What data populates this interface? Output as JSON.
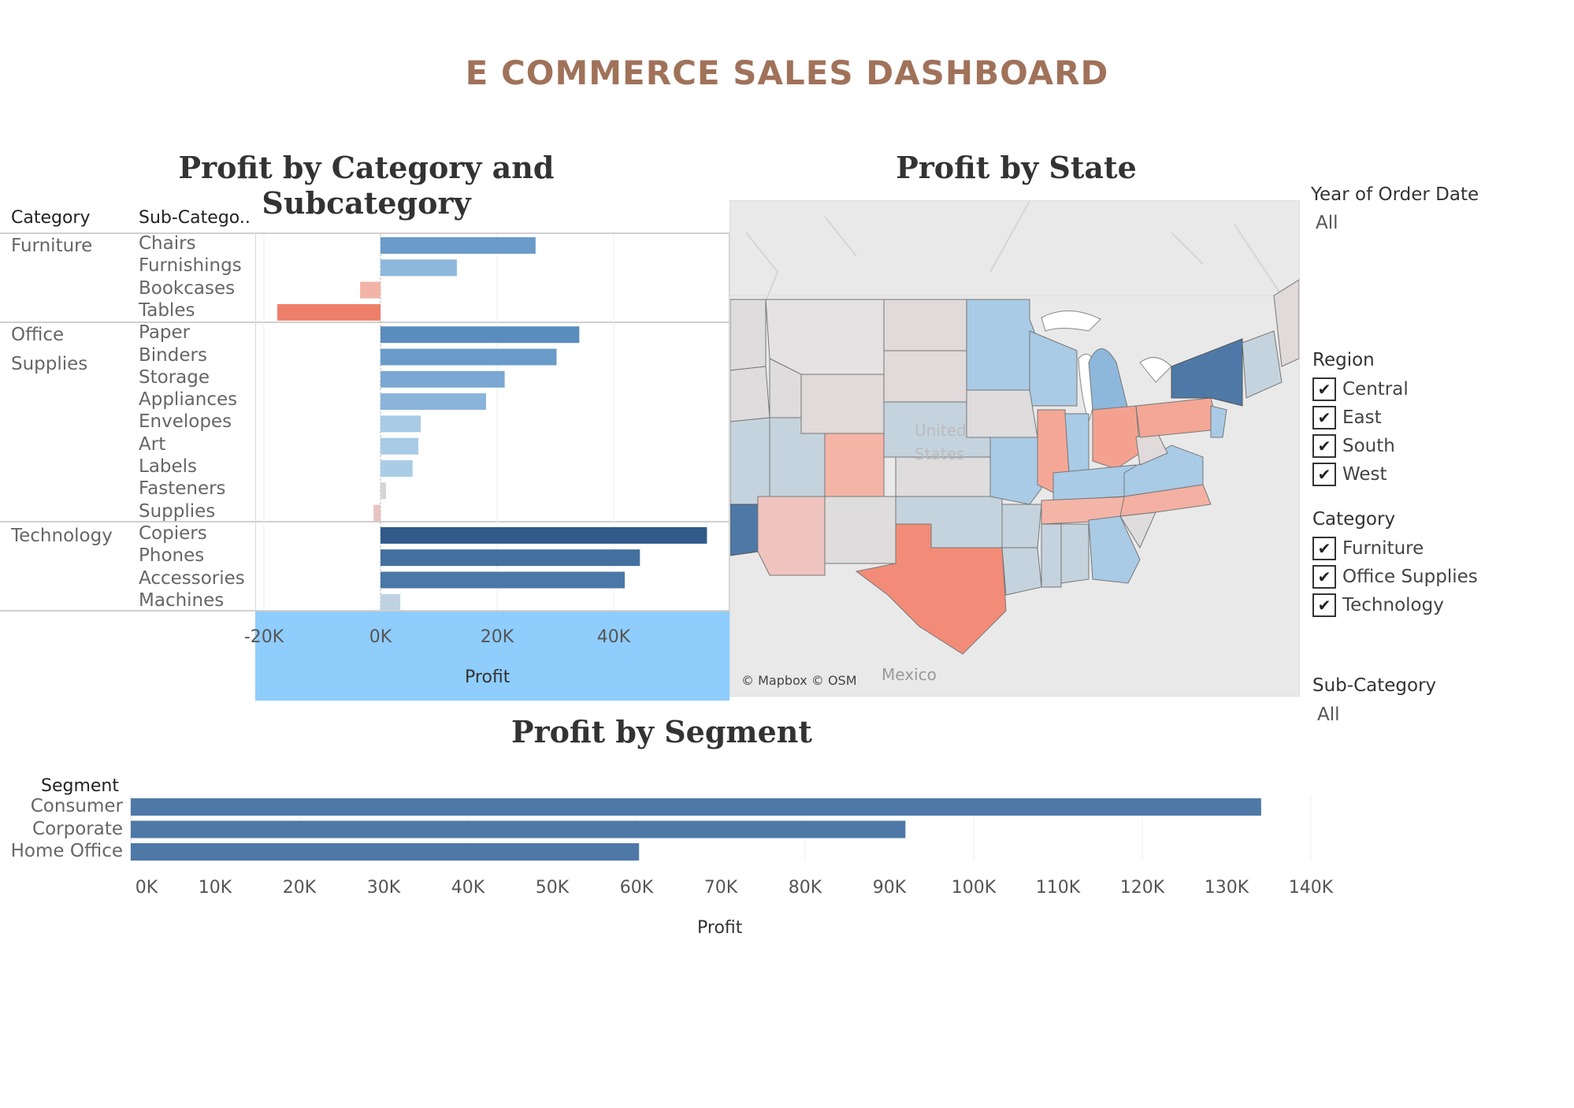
{
  "dashboard": {
    "title": "E COMMERCE SALES DASHBOARD"
  },
  "category_chart": {
    "title": "Profit by Category and Subcategory",
    "col_header_category": "Category",
    "col_header_subcategory": "Sub-Catego..",
    "categories": [
      {
        "name_lines": [
          "Furniture"
        ],
        "subs": [
          "Chairs",
          "Furnishings",
          "Bookcases",
          "Tables"
        ]
      },
      {
        "name_lines": [
          "Office",
          "Supplies"
        ],
        "subs": [
          "Paper",
          "Binders",
          "Storage",
          "Appliances",
          "Envelopes",
          "Art",
          "Labels",
          "Fasteners",
          "Supplies"
        ]
      },
      {
        "name_lines": [
          "Technology"
        ],
        "subs": [
          "Copiers",
          "Phones",
          "Accessories",
          "Machines"
        ]
      }
    ],
    "ticks": [
      "-20K",
      "0K",
      "20K",
      "40K"
    ],
    "axis_title": "Profit"
  },
  "chart_data": [
    {
      "type": "bar",
      "title": "Profit by Category and Subcategory",
      "orientation": "horizontal",
      "categories": [
        "Chairs",
        "Furnishings",
        "Bookcases",
        "Tables",
        "Paper",
        "Binders",
        "Storage",
        "Appliances",
        "Envelopes",
        "Art",
        "Labels",
        "Fasteners",
        "Supplies",
        "Copiers",
        "Phones",
        "Accessories",
        "Machines"
      ],
      "groups": [
        "Furniture",
        "Furniture",
        "Furniture",
        "Furniture",
        "Office Supplies",
        "Office Supplies",
        "Office Supplies",
        "Office Supplies",
        "Office Supplies",
        "Office Supplies",
        "Office Supplies",
        "Office Supplies",
        "Office Supplies",
        "Technology",
        "Technology",
        "Technology",
        "Technology"
      ],
      "values": [
        26600,
        13100,
        -3500,
        -17700,
        34100,
        30200,
        21300,
        18100,
        6900,
        6500,
        5500,
        950,
        -1200,
        56000,
        44500,
        41900,
        3400
      ],
      "colors": [
        "#6a9bc9",
        "#8db8dc",
        "#f2b4a6",
        "#ee7f6b",
        "#5a8cbd",
        "#6a9bc9",
        "#7aa8d2",
        "#8ab4da",
        "#a8cbe6",
        "#a8cbe6",
        "#aacde7",
        "#d8d4d4",
        "#e8c4c0",
        "#2f5a8a",
        "#44709f",
        "#4a77a6",
        "#c0d2e2"
      ],
      "xlabel": "Profit",
      "xlim": [
        -20000,
        58000
      ],
      "xticks": [
        "-20K",
        "0K",
        "20K",
        "40K"
      ]
    },
    {
      "type": "bar",
      "title": "Profit by Segment",
      "orientation": "horizontal",
      "categories": [
        "Consumer",
        "Corporate",
        "Home Office"
      ],
      "values": [
        134100,
        91900,
        60300
      ],
      "colors": [
        "#4e79a7",
        "#4e79a7",
        "#4e79a7"
      ],
      "xlabel": "Profit",
      "xlim": [
        0,
        140000
      ],
      "xticks": [
        "0K",
        "10K",
        "20K",
        "30K",
        "40K",
        "50K",
        "60K",
        "70K",
        "80K",
        "90K",
        "100K",
        "110K",
        "120K",
        "130K",
        "140K"
      ]
    }
  ],
  "state_map": {
    "title": "Profit by State",
    "attribution": "© Mapbox © OSM",
    "label_mexico": "Mexico",
    "label_us_1": "United",
    "label_us_2": "States",
    "colors": {
      "strong_positive": "#4e79a7",
      "positive": "#a9cbe6",
      "neutral": "#dedcdc",
      "negative": "#f4ab9a",
      "strong_negative": "#ee8a74"
    }
  },
  "segment_chart": {
    "title": "Profit by Segment",
    "col_header": "Segment",
    "segments": [
      "Consumer",
      "Corporate",
      "Home Office"
    ],
    "ticks": [
      "0K",
      "10K",
      "20K",
      "30K",
      "40K",
      "50K",
      "60K",
      "70K",
      "80K",
      "90K",
      "100K",
      "110K",
      "120K",
      "130K",
      "140K"
    ],
    "axis_title": "Profit"
  },
  "filters": {
    "year": {
      "title": "Year of Order Date",
      "value": "All"
    },
    "region": {
      "title": "Region",
      "options": [
        "Central",
        "East",
        "South",
        "West"
      ]
    },
    "category": {
      "title": "Category",
      "options": [
        "Furniture",
        "Office Supplies",
        "Technology"
      ]
    },
    "subcategory": {
      "title": "Sub-Category",
      "value": "All"
    },
    "check_mark": "✔"
  }
}
